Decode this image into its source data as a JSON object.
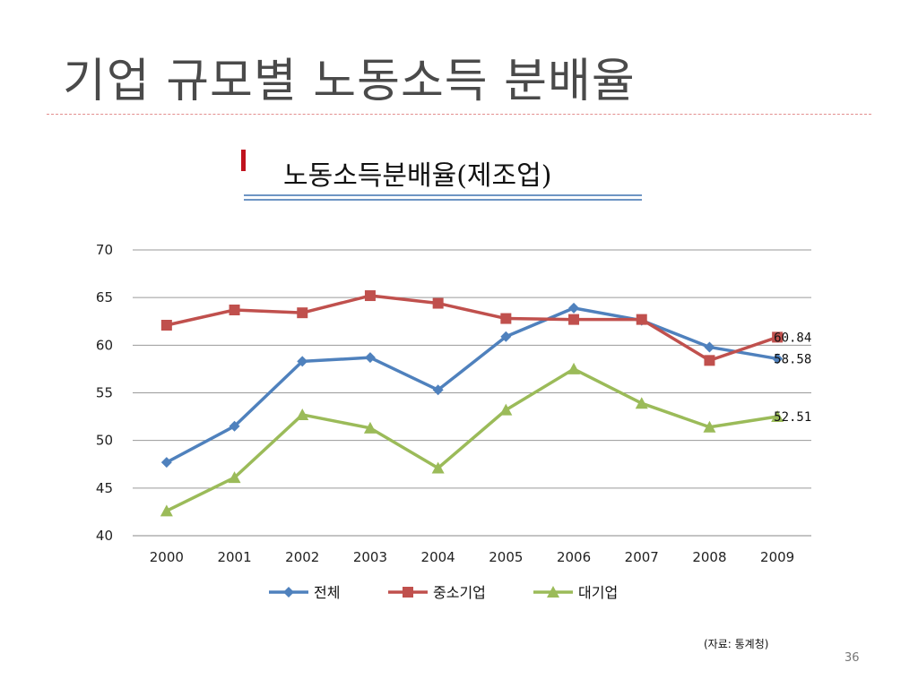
{
  "slide": {
    "title": "기업 규모별 노동소득 분배율",
    "subtitle": "노동소득분배율(제조업)",
    "source": "(자료:  통계청)",
    "page_number": "36"
  },
  "colors": {
    "title": "#4a4a4a",
    "rule": "#e38e8e",
    "marker": "#c0131e"
  },
  "chart_data": {
    "type": "line",
    "categories": [
      "2000",
      "2001",
      "2002",
      "2003",
      "2004",
      "2005",
      "2006",
      "2007",
      "2008",
      "2009"
    ],
    "ylim": [
      40,
      70
    ],
    "yticks": [
      40,
      45,
      50,
      55,
      60,
      65,
      70
    ],
    "grid": true,
    "legend_position": "bottom",
    "series": [
      {
        "name": "전체",
        "color": "#4f81bd",
        "marker": "diamond",
        "values": [
          47.7,
          51.5,
          58.3,
          58.7,
          55.3,
          60.9,
          63.9,
          62.6,
          59.8,
          58.58
        ],
        "end_label": "58.58"
      },
      {
        "name": "중소기업",
        "color": "#c0504d",
        "marker": "square",
        "values": [
          62.1,
          63.7,
          63.4,
          65.2,
          64.4,
          62.8,
          62.7,
          62.7,
          58.4,
          60.84
        ],
        "end_label": "60.84"
      },
      {
        "name": "대기업",
        "color": "#9bbb59",
        "marker": "triangle",
        "values": [
          42.6,
          46.1,
          52.7,
          51.3,
          47.1,
          53.2,
          57.5,
          53.9,
          51.4,
          52.51
        ],
        "end_label": "52.51"
      }
    ]
  }
}
